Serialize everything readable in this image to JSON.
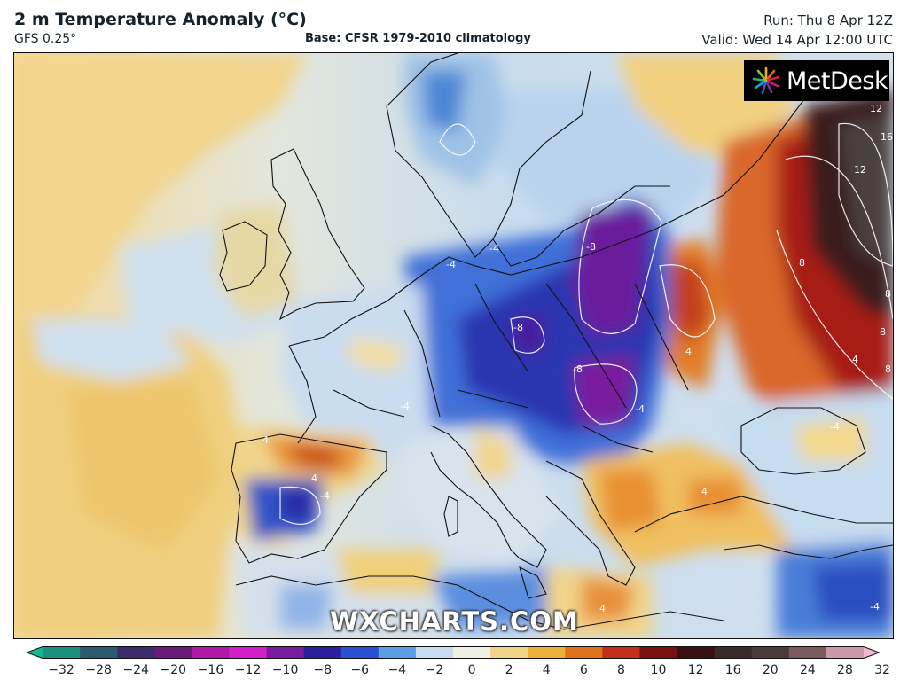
{
  "header": {
    "title": "2 m Temperature Anomaly (°C)",
    "model": "GFS 0.25°",
    "base": "Base: CFSR 1979-2010 climatology",
    "run": "Run: Thu 8 Apr 12Z",
    "valid": "Valid: Wed 14 Apr 12:00 UTC"
  },
  "logo": {
    "text": "MetDesk",
    "icon": "metdesk-starburst-icon"
  },
  "watermark": "WXCHARTS.COM",
  "contour_labels": [
    "-8",
    "-8",
    "-8",
    "-4",
    "-4",
    "-4",
    "-4",
    "-4",
    "-4",
    "-4",
    "4",
    "4",
    "4",
    "4",
    "4",
    "4",
    "8",
    "8",
    "8",
    "8",
    "12",
    "12",
    "16"
  ],
  "colorbar": {
    "ticks": [
      "−32",
      "−28",
      "−24",
      "−20",
      "−16",
      "−12",
      "−10",
      "−8",
      "−6",
      "−4",
      "−2",
      "0",
      "2",
      "4",
      "6",
      "8",
      "10",
      "12",
      "16",
      "20",
      "24",
      "28",
      "32"
    ],
    "colors": [
      "#19b58c",
      "#1c8f7e",
      "#2b5b6e",
      "#3b2c6e",
      "#6a1a7a",
      "#b018a8",
      "#d21fc8",
      "#7a1a9e",
      "#2a1f9c",
      "#2a4fd0",
      "#5c9ee6",
      "#c8dcef",
      "#f0efe4",
      "#f2d488",
      "#eab23a",
      "#e0721c",
      "#c2301a",
      "#7a1010",
      "#3a1010",
      "#3a2a2a",
      "#4a3a3a",
      "#7a5a5a",
      "#c89aa8",
      "#f0b8d0"
    ]
  }
}
